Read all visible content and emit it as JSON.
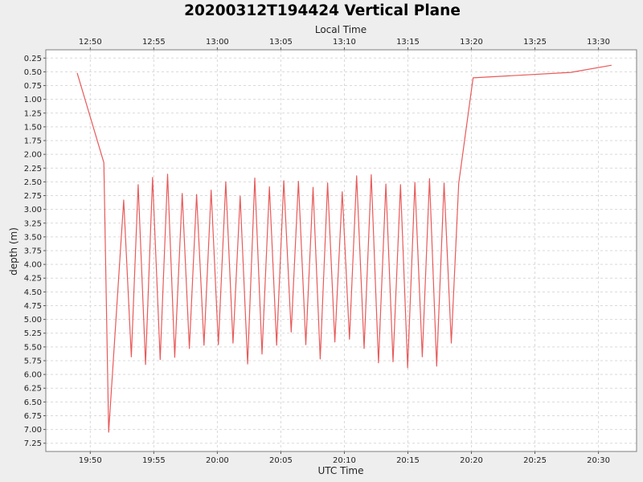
{
  "chart_data": {
    "type": "line",
    "title": "20200312T194424 Vertical Plane",
    "xlabel": "UTC Time",
    "x2label": "Local Time",
    "ylabel": "depth (m)",
    "xlim": [
      "19:46:30",
      "20:33:00"
    ],
    "ylim": [
      0.1,
      7.4
    ],
    "y_inverted": true,
    "grid": true,
    "x_ticks": [
      "19:50",
      "19:55",
      "20:00",
      "20:05",
      "20:10",
      "20:15",
      "20:20",
      "20:25",
      "20:30"
    ],
    "x2_ticks": [
      "12:50",
      "12:55",
      "13:00",
      "13:05",
      "13:10",
      "13:15",
      "13:20",
      "13:25",
      "13:30"
    ],
    "y_ticks": [
      "0.25",
      "0.50",
      "0.75",
      "1.00",
      "1.25",
      "1.50",
      "1.75",
      "2.00",
      "2.25",
      "2.50",
      "2.75",
      "3.00",
      "3.25",
      "3.50",
      "3.75",
      "4.00",
      "4.25",
      "4.50",
      "4.75",
      "5.00",
      "5.25",
      "5.50",
      "5.75",
      "6.00",
      "6.25",
      "6.50",
      "6.75",
      "7.00",
      "7.25"
    ],
    "colors": {
      "series": "#e85a5a",
      "background": "#ffffff",
      "figure": "#eeeeee",
      "grid": "#d9d9d9"
    },
    "series": [
      {
        "x": [
          "19:48:58",
          "19:51:04",
          "19:51:27",
          "19:52:38",
          "19:53:14",
          "19:53:46",
          "19:54:21",
          "19:54:54",
          "19:55:30",
          "19:56:05",
          "19:56:39",
          "19:57:14",
          "19:57:48",
          "19:58:22",
          "19:58:57",
          "19:59:31",
          "20:00:05",
          "20:00:40",
          "20:01:14",
          "20:01:48",
          "20:02:23",
          "20:02:57",
          "20:03:31",
          "20:04:06",
          "20:04:40",
          "20:05:14",
          "20:05:49",
          "20:06:23",
          "20:06:58",
          "20:07:32",
          "20:08:06",
          "20:08:41",
          "20:09:15",
          "20:09:50",
          "20:10:24",
          "20:10:58",
          "20:11:33",
          "20:12:07",
          "20:12:41",
          "20:13:16",
          "20:13:50",
          "20:14:25",
          "20:14:59",
          "20:15:33",
          "20:16:08",
          "20:16:42",
          "20:17:16",
          "20:17:51",
          "20:18:25",
          "20:19:00",
          "20:20:08",
          "20:27:49",
          "20:31:02"
        ],
        "y": [
          0.52,
          2.15,
          7.05,
          2.83,
          5.68,
          2.55,
          5.82,
          2.42,
          5.73,
          2.36,
          5.69,
          2.71,
          5.53,
          2.73,
          5.47,
          2.65,
          5.46,
          2.5,
          5.43,
          2.76,
          5.81,
          2.43,
          5.63,
          2.59,
          5.47,
          2.48,
          5.23,
          2.49,
          5.46,
          2.6,
          5.72,
          2.52,
          5.41,
          2.68,
          5.36,
          2.39,
          5.53,
          2.37,
          5.79,
          2.54,
          5.77,
          2.55,
          5.88,
          2.51,
          5.68,
          2.44,
          5.85,
          2.52,
          5.43,
          2.53,
          0.61,
          0.51,
          0.38
        ]
      }
    ]
  }
}
